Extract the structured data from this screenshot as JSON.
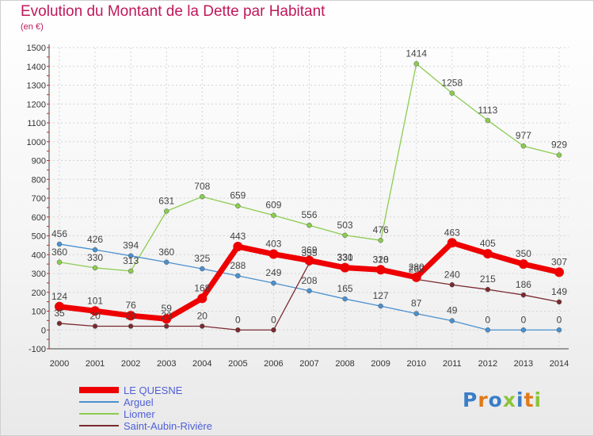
{
  "title": "Evolution du Montant de la Dette par Habitant",
  "subtitle": "(en €)",
  "logo": {
    "text": "Proxiti",
    "colors": [
      "#3a7ec8",
      "#e07a1a",
      "#3a7ec8",
      "#8cc43c",
      "#3a7ec8",
      "#e07a1a",
      "#8cc43c"
    ]
  },
  "chart_data": {
    "type": "line",
    "x": [
      "2000",
      "2001",
      "2002",
      "2003",
      "2004",
      "2005",
      "2006",
      "2007",
      "2008",
      "2009",
      "2010",
      "2011",
      "2012",
      "2013",
      "2014"
    ],
    "ylim": [
      -100,
      1500
    ],
    "yticks": [
      -100,
      0,
      100,
      200,
      300,
      400,
      500,
      600,
      700,
      800,
      900,
      1000,
      1100,
      1200,
      1300,
      1400,
      1500
    ],
    "grid": true,
    "legend": "bottom-left",
    "series": [
      {
        "name": "LE QUESNE",
        "color": "#ee0000",
        "values": [
          124,
          101,
          76,
          59,
          168,
          443,
          403,
          369,
          331,
          320,
          280,
          463,
          405,
          350,
          307
        ],
        "labels": [
          "124",
          "101",
          "76",
          "59",
          "168",
          "443",
          "403",
          "369",
          "331",
          "320",
          "280",
          "463",
          "405",
          "350",
          "307"
        ]
      },
      {
        "name": "Arguel",
        "color": "#4a90d0",
        "values": [
          456,
          426,
          394,
          360,
          325,
          288,
          249,
          208,
          165,
          127,
          87,
          49,
          0,
          0,
          0
        ],
        "labels": [
          "456",
          "426",
          "394",
          "360",
          "325",
          "288",
          "249",
          "208",
          "165",
          "127",
          "87",
          "49",
          "0",
          "0",
          "0"
        ]
      },
      {
        "name": "Liomer",
        "color": "#8ccc50",
        "values": [
          360,
          330,
          313,
          631,
          708,
          659,
          609,
          556,
          503,
          476,
          1414,
          1258,
          1113,
          977,
          929
        ],
        "labels": [
          "360",
          "330",
          "313",
          "631",
          "708",
          "659",
          "609",
          "556",
          "503",
          "476",
          "1414",
          "1258",
          "1113",
          "977",
          "929"
        ]
      },
      {
        "name": "Saint-Aubin-Rivière",
        "color": "#7a2a30",
        "values": [
          35,
          20,
          20,
          20,
          20,
          0,
          0,
          355,
          330,
          318,
          269,
          240,
          215,
          186,
          149
        ],
        "labels": [
          "35",
          "20",
          "20",
          "20",
          "20",
          "0",
          "0",
          "355",
          "330",
          "318",
          "269",
          "240",
          "215",
          "186",
          "149"
        ]
      }
    ]
  }
}
